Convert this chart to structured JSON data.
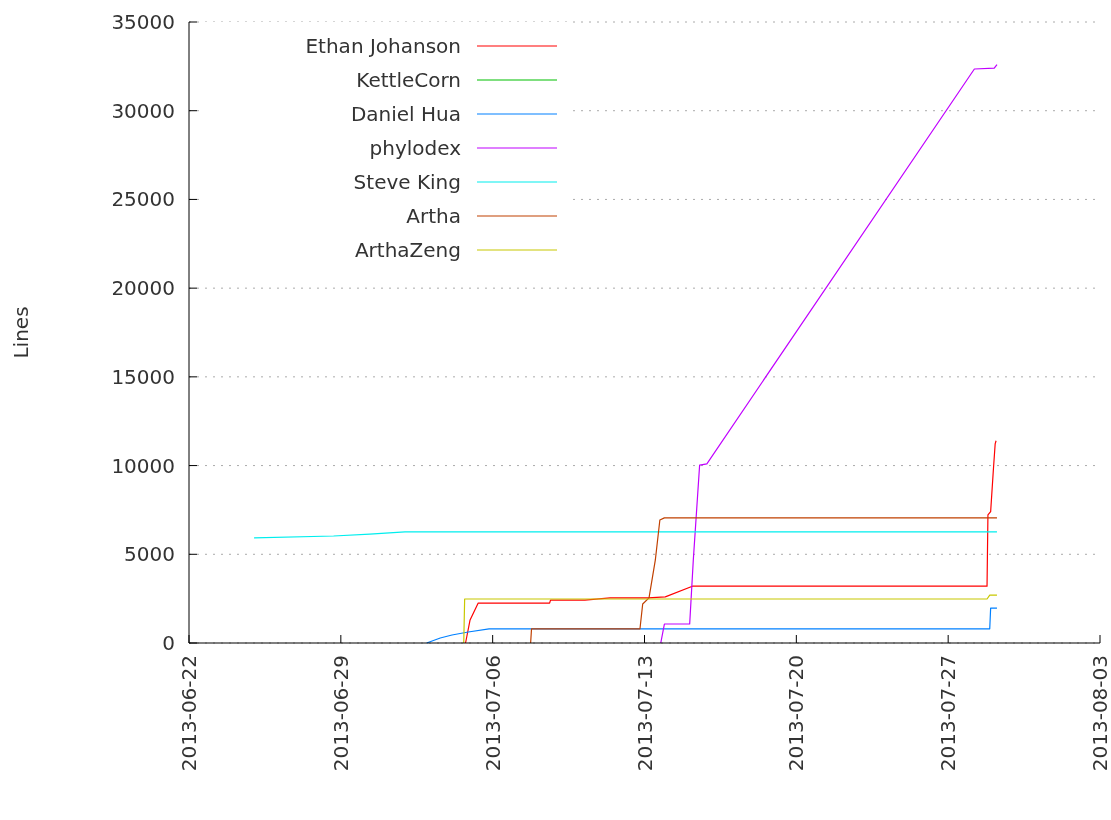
{
  "chart_data": {
    "type": "line",
    "ylabel": "Lines",
    "ylim": [
      0,
      35000
    ],
    "yticks": [
      0,
      5000,
      10000,
      15000,
      20000,
      25000,
      30000,
      35000
    ],
    "xlim": [
      "2013-06-22",
      "2013-08-03"
    ],
    "xticks": [
      "2013-06-22",
      "2013-06-29",
      "2013-07-06",
      "2013-07-13",
      "2013-07-20",
      "2013-07-27",
      "2013-08-03"
    ],
    "grid": "y",
    "legend": "top left",
    "line_style": "solid",
    "series": [
      {
        "name": "Ethan Johanson",
        "color": "#ff0000",
        "x": [
          "2013-07-04T18:00",
          "2013-07-04T23:00",
          "2013-07-05T08:00",
          "2013-07-08T15:00",
          "2013-07-08T16:00",
          "2013-07-10T06:00",
          "2013-07-11T10:00",
          "2013-07-13T04:00",
          "2013-07-13T23:00",
          "2013-07-15T05:00",
          "2013-07-28T19:00",
          "2013-07-28T20:00",
          "2013-07-28T23:00",
          "2013-07-29T02:00",
          "2013-07-29T04:00",
          "2013-07-29T05:00"
        ],
        "values": [
          0,
          1300,
          2250,
          2250,
          2420,
          2420,
          2540,
          2540,
          2600,
          3200,
          3200,
          7220,
          7400,
          9750,
          11220,
          11400
        ]
      },
      {
        "name": "KettleCorn",
        "color": "#00c000"
      },
      {
        "name": "Daniel Hua",
        "color": "#0080ff",
        "x": [
          "2013-07-02T23:00",
          "2013-07-03T14:00",
          "2013-07-04T03:00",
          "2013-07-04T21:00",
          "2013-07-05T20:00",
          "2013-07-28T22:00",
          "2013-07-28T23:00",
          "2013-07-29T06:00"
        ],
        "values": [
          0,
          280,
          450,
          620,
          800,
          800,
          1970,
          1970
        ]
      },
      {
        "name": "phylodex",
        "color": "#c000ff",
        "x": [
          "2013-07-13T18:00",
          "2013-07-13T22:00",
          "2013-07-15T02:00",
          "2013-07-15T06:00",
          "2013-07-15T13:00",
          "2013-07-15T21:00",
          "2013-07-28T05:00",
          "2013-07-29T03:00",
          "2013-07-29T06:00"
        ],
        "values": [
          0,
          1070,
          1070,
          4680,
          10030,
          10100,
          32350,
          32400,
          32600
        ]
      },
      {
        "name": "Steve King",
        "color": "#00eeee",
        "x": [
          "2013-06-25T00:00",
          "2013-06-28T16:00",
          "2013-06-30T08:00",
          "2013-07-01T23:00",
          "2013-07-29T06:00"
        ],
        "values": [
          5920,
          6030,
          6140,
          6260,
          6260
        ]
      },
      {
        "name": "Artha",
        "color": "#c04000",
        "x": [
          "2013-07-07T18:00",
          "2013-07-07T19:00",
          "2013-07-12T19:00",
          "2013-07-12T22:00",
          "2013-07-13T05:00",
          "2013-07-13T12:00",
          "2013-07-13T17:00",
          "2013-07-13T22:00",
          "2013-07-29T06:00"
        ],
        "values": [
          0,
          800,
          800,
          2200,
          2540,
          4680,
          6930,
          7050,
          7050
        ]
      },
      {
        "name": "ArthaZeng",
        "color": "#c8c800",
        "x": [
          "2013-07-04T16:00",
          "2013-07-04T17:00",
          "2013-07-28T19:00",
          "2013-07-28T22:00",
          "2013-07-29T06:00"
        ],
        "values": [
          0,
          2480,
          2480,
          2700,
          2700
        ]
      }
    ]
  }
}
